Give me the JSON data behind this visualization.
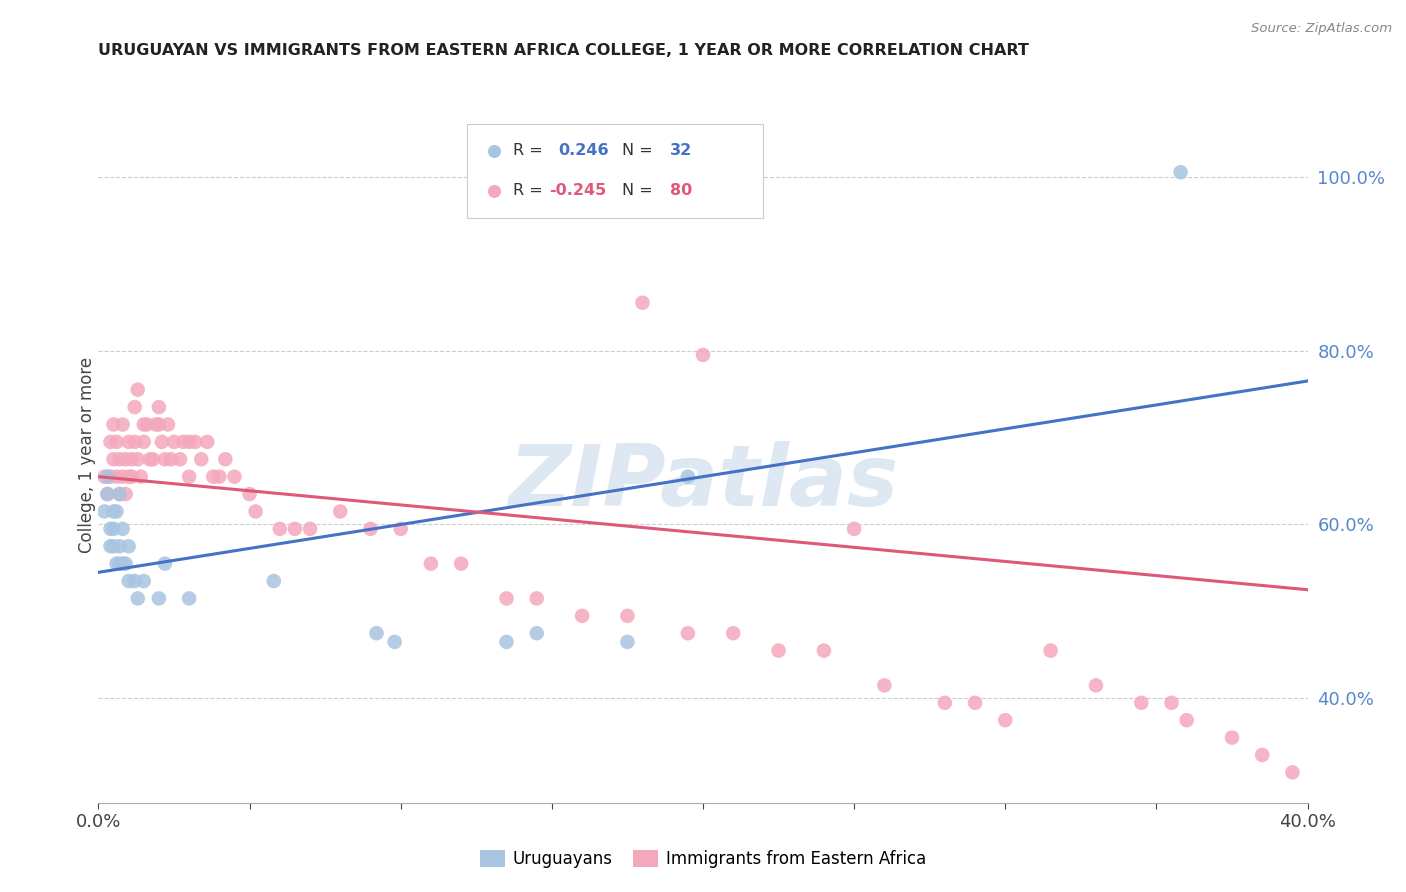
{
  "title": "URUGUAYAN VS IMMIGRANTS FROM EASTERN AFRICA COLLEGE, 1 YEAR OR MORE CORRELATION CHART",
  "source": "Source: ZipAtlas.com",
  "ylabel": "College, 1 year or more",
  "xlim": [
    0.0,
    0.4
  ],
  "ylim": [
    0.28,
    1.08
  ],
  "blue_color": "#a8c4e0",
  "pink_color": "#f4a8bc",
  "blue_line_color": "#4472c4",
  "pink_line_color": "#e05878",
  "watermark_color": "#ccdcee",
  "watermark_text": "ZIPatlas",
  "grid_color": "#cccccc",
  "background_color": "#ffffff",
  "blue_intercept": 0.545,
  "blue_slope": 0.55,
  "pink_intercept": 0.655,
  "pink_slope": -0.325,
  "blue_scatter_x": [
    0.002,
    0.003,
    0.003,
    0.004,
    0.004,
    0.005,
    0.005,
    0.005,
    0.006,
    0.006,
    0.007,
    0.007,
    0.007,
    0.008,
    0.008,
    0.009,
    0.01,
    0.01,
    0.012,
    0.013,
    0.015,
    0.02,
    0.022,
    0.03,
    0.058,
    0.092,
    0.098,
    0.135,
    0.145,
    0.175,
    0.195,
    0.358
  ],
  "blue_scatter_y": [
    0.615,
    0.635,
    0.655,
    0.575,
    0.595,
    0.575,
    0.595,
    0.615,
    0.555,
    0.615,
    0.555,
    0.575,
    0.635,
    0.555,
    0.595,
    0.555,
    0.535,
    0.575,
    0.535,
    0.515,
    0.535,
    0.515,
    0.555,
    0.515,
    0.535,
    0.475,
    0.465,
    0.465,
    0.475,
    0.465,
    0.655,
    1.005
  ],
  "pink_scatter_x": [
    0.002,
    0.003,
    0.004,
    0.004,
    0.005,
    0.005,
    0.006,
    0.006,
    0.007,
    0.007,
    0.008,
    0.008,
    0.009,
    0.009,
    0.01,
    0.01,
    0.011,
    0.011,
    0.012,
    0.012,
    0.013,
    0.013,
    0.014,
    0.015,
    0.015,
    0.016,
    0.017,
    0.018,
    0.019,
    0.02,
    0.02,
    0.021,
    0.022,
    0.023,
    0.024,
    0.025,
    0.027,
    0.028,
    0.03,
    0.03,
    0.032,
    0.034,
    0.036,
    0.038,
    0.04,
    0.042,
    0.045,
    0.05,
    0.052,
    0.06,
    0.065,
    0.07,
    0.08,
    0.09,
    0.1,
    0.11,
    0.12,
    0.135,
    0.145,
    0.16,
    0.175,
    0.195,
    0.21,
    0.225,
    0.24,
    0.26,
    0.28,
    0.3,
    0.315,
    0.33,
    0.345,
    0.36,
    0.375,
    0.385,
    0.395,
    0.18,
    0.2,
    0.25,
    0.29,
    0.355
  ],
  "pink_scatter_y": [
    0.655,
    0.635,
    0.695,
    0.655,
    0.675,
    0.715,
    0.655,
    0.695,
    0.635,
    0.675,
    0.655,
    0.715,
    0.635,
    0.675,
    0.655,
    0.695,
    0.675,
    0.655,
    0.695,
    0.735,
    0.675,
    0.755,
    0.655,
    0.695,
    0.715,
    0.715,
    0.675,
    0.675,
    0.715,
    0.715,
    0.735,
    0.695,
    0.675,
    0.715,
    0.675,
    0.695,
    0.675,
    0.695,
    0.655,
    0.695,
    0.695,
    0.675,
    0.695,
    0.655,
    0.655,
    0.675,
    0.655,
    0.635,
    0.615,
    0.595,
    0.595,
    0.595,
    0.615,
    0.595,
    0.595,
    0.555,
    0.555,
    0.515,
    0.515,
    0.495,
    0.495,
    0.475,
    0.475,
    0.455,
    0.455,
    0.415,
    0.395,
    0.375,
    0.455,
    0.415,
    0.395,
    0.375,
    0.355,
    0.335,
    0.315,
    0.855,
    0.795,
    0.595,
    0.395,
    0.395
  ]
}
